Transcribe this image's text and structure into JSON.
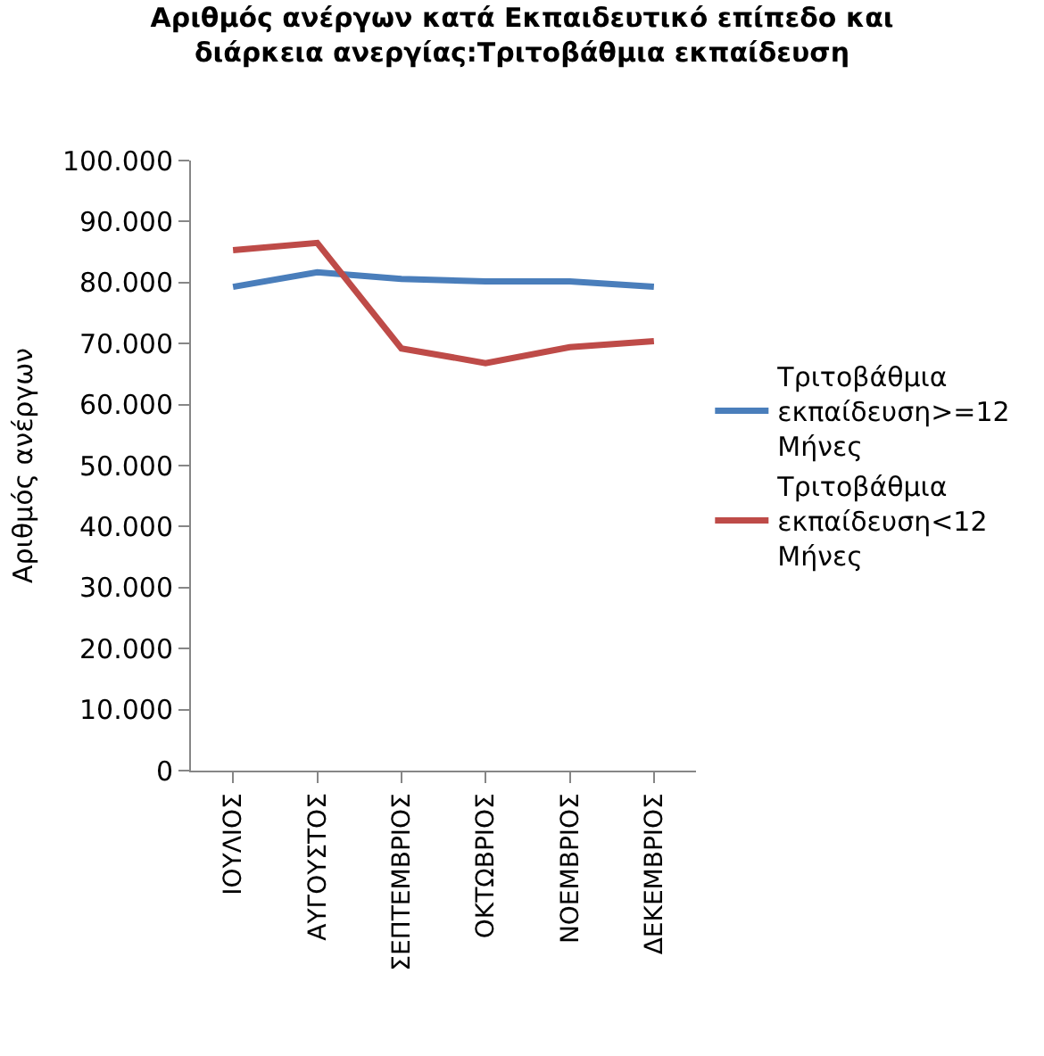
{
  "chart_data": {
    "type": "line",
    "title": "Αριθμός ανέργων κατά Εκπαιδευτικό επίπεδο και διάρκεια ανεργίας:Τριτοβάθμια εκπαίδευση",
    "ylabel": "Αριθμός ανέργων",
    "categories": [
      "ΙΟΥΛΙΟΣ",
      "ΑΥΓΟΥΣΤΟΣ",
      "ΣΕΠΤΕΜΒΡΙΟΣ",
      "ΟΚΤΩΒΡΙΟΣ",
      "ΝΟΕΜΒΡΙΟΣ",
      "ΔΕΚΕΜΒΡΙΟΣ"
    ],
    "series": [
      {
        "name": "Τριτοβάθμια εκπαίδευση>=12 Μήνες",
        "color": "#4a7ebb",
        "values": [
          79300,
          81700,
          80600,
          80200,
          80200,
          79300
        ]
      },
      {
        "name": "Τριτοβάθμια εκπαίδευση<12 Μήνες",
        "color": "#be4b48",
        "values": [
          85300,
          86500,
          69200,
          66800,
          69400,
          70400
        ]
      }
    ],
    "ylim": [
      0,
      100000
    ],
    "yticks": [
      0,
      {
        "value": 10000,
        "label": "10.000"
      },
      {
        "value": 20000,
        "label": "20.000"
      },
      {
        "value": 30000,
        "label": "30.000"
      },
      {
        "value": 40000,
        "label": "40.000"
      },
      {
        "value": 50000,
        "label": "50.000"
      },
      {
        "value": 60000,
        "label": "60.000"
      },
      {
        "value": 70000,
        "label": "70.000"
      },
      {
        "value": 80000,
        "label": "80.000"
      },
      {
        "value": 90000,
        "label": "90.000"
      },
      {
        "value": 100000,
        "label": "100.000"
      }
    ],
    "grid": false,
    "legend": "right",
    "marker": "none",
    "line_style": "solid"
  }
}
